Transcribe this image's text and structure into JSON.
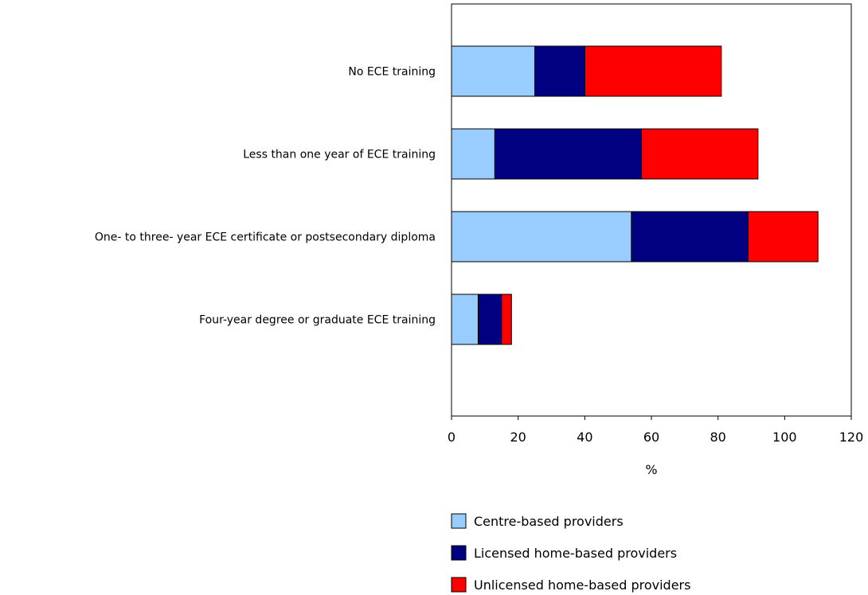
{
  "chart_data": {
    "type": "bar",
    "orientation": "horizontal",
    "stacked": true,
    "categories": [
      "No ECE training",
      "Less than one year of ECE training",
      "One- to three- year ECE certificate or postsecondary diploma",
      "Four-year degree or graduate ECE training"
    ],
    "series": [
      {
        "name": "Centre-based providers",
        "color": "#99ccff",
        "values": [
          25,
          13,
          54,
          8
        ]
      },
      {
        "name": "Licensed home-based providers",
        "color": "#000080",
        "values": [
          15,
          44,
          35,
          7
        ]
      },
      {
        "name": "Unlicensed home-based providers",
        "color": "#ff0000",
        "values": [
          41,
          35,
          21,
          3
        ]
      }
    ],
    "xlabel": "%",
    "xlim": [
      0,
      120
    ],
    "xticks": [
      "0",
      "20",
      "40",
      "60",
      "80",
      "100",
      "120"
    ],
    "grid": false,
    "legend_position": "bottom"
  }
}
